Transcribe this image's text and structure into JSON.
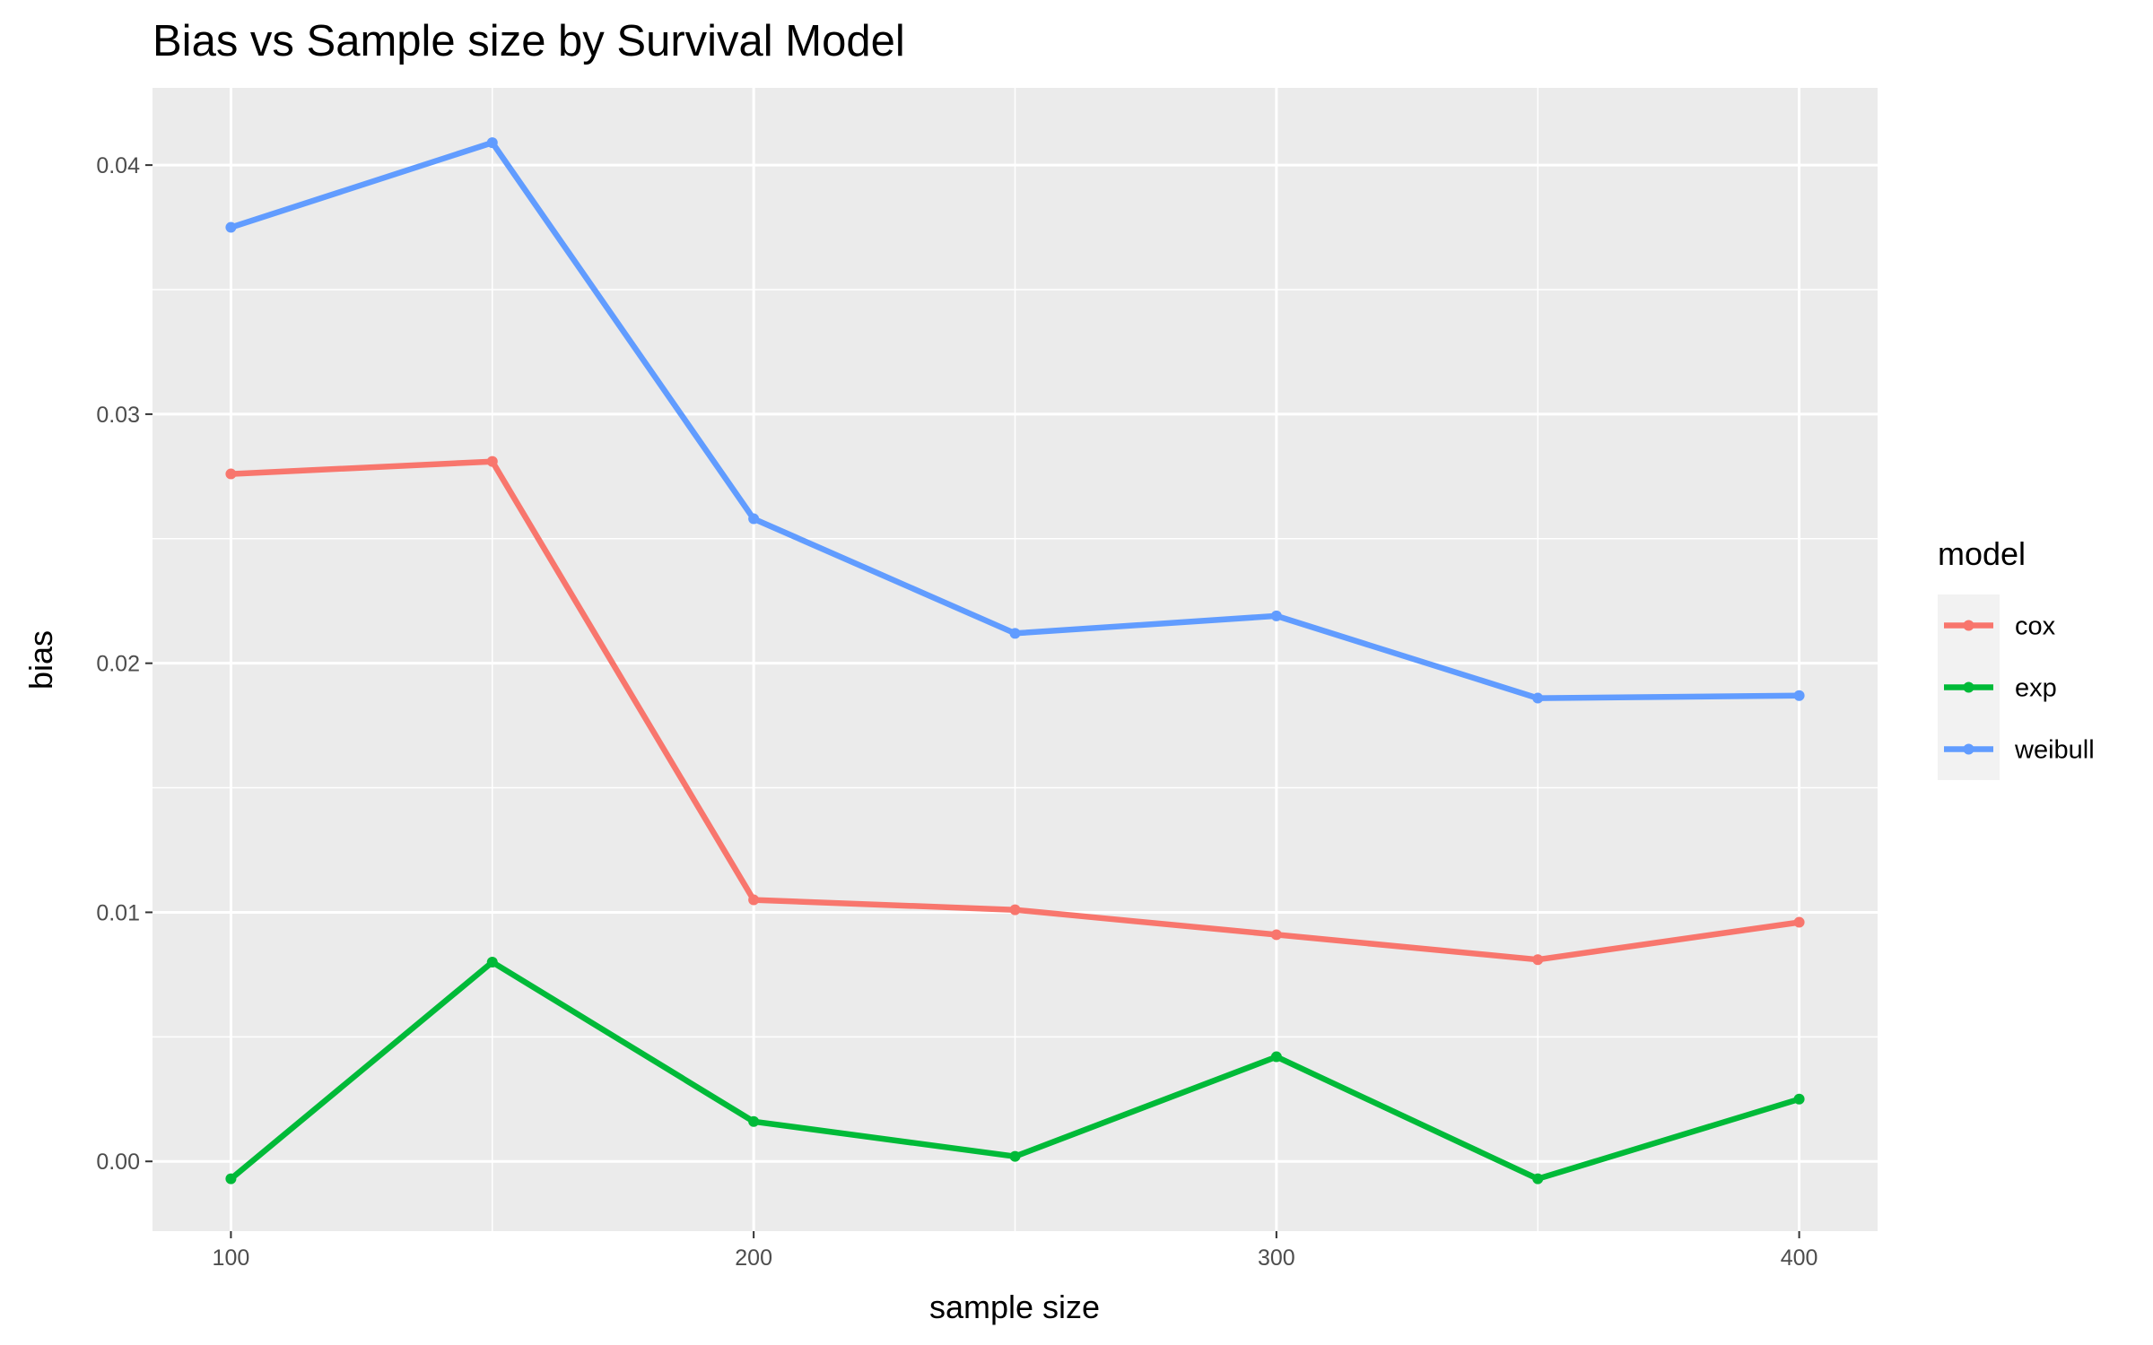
{
  "chart_data": {
    "type": "line",
    "title": "Bias vs Sample size by Survival Model",
    "xlabel": "sample size",
    "ylabel": "bias",
    "x": [
      100,
      150,
      200,
      250,
      300,
      350,
      400
    ],
    "xlim": [
      85,
      415
    ],
    "ylim": [
      -0.0028,
      0.0431
    ],
    "x_ticks": [
      100,
      200,
      300,
      400
    ],
    "y_ticks": [
      0.0,
      0.01,
      0.02,
      0.03,
      0.04
    ],
    "x_tick_labels": [
      "100",
      "200",
      "300",
      "400"
    ],
    "y_tick_labels": [
      "0.00",
      "0.01",
      "0.02",
      "0.03",
      "0.04"
    ],
    "grid": true,
    "legend": {
      "title": "model",
      "placement": "right"
    },
    "series": [
      {
        "name": "cox",
        "color": "#F8766D",
        "values": [
          0.0276,
          0.0281,
          0.0105,
          0.0101,
          0.0091,
          0.0081,
          0.0096
        ]
      },
      {
        "name": "exp",
        "color": "#00BA38",
        "values": [
          -0.0007,
          0.008,
          0.0016,
          0.0002,
          0.0042,
          -0.0007,
          0.0025
        ]
      },
      {
        "name": "weibull",
        "color": "#619CFF",
        "values": [
          0.0375,
          0.0409,
          0.0258,
          0.0212,
          0.0219,
          0.0186,
          0.0187
        ]
      }
    ]
  },
  "colors": {
    "panel_background": "#EBEBEB",
    "grid_major": "#FFFFFF",
    "legend_key_background": "#F2F2F2"
  }
}
